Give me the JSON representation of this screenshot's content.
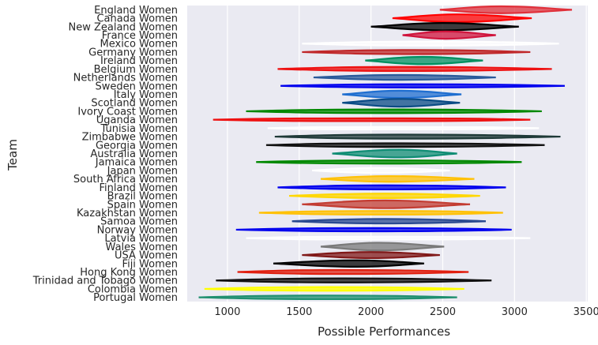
{
  "chart_data": {
    "type": "violin",
    "orientation": "horizontal",
    "title": "",
    "xlabel": "Possible Performances",
    "ylabel": "Team",
    "xlim": [
      720,
      3510
    ],
    "xticks": [
      1000,
      1500,
      2000,
      2500,
      3000,
      3500
    ],
    "grid": true,
    "legend": "none",
    "background": "#eaeaf2",
    "series": [
      {
        "name": "England Women",
        "color": "#e0303a",
        "min": 2480,
        "max": 3400,
        "center": 2900,
        "width": 0.85
      },
      {
        "name": "Canada Women",
        "color": "#ff0000",
        "min": 2150,
        "max": 3120,
        "center": 2600,
        "width": 0.95
      },
      {
        "name": "New Zealand Women",
        "color": "#000000",
        "min": 2000,
        "max": 3030,
        "center": 2500,
        "width": 0.9
      },
      {
        "name": "France Women",
        "color": "#d0143c",
        "min": 2220,
        "max": 2870,
        "center": 2520,
        "width": 0.9
      },
      {
        "name": "Mexico Women",
        "color": "#ffffff",
        "min": 1520,
        "max": 3310,
        "center": 2400,
        "width": 0.5
      },
      {
        "name": "Germany Women",
        "color": "#c0282a",
        "min": 1520,
        "max": 3110,
        "center": 2300,
        "width": 0.5
      },
      {
        "name": "Ireland Women",
        "color": "#009060",
        "min": 1960,
        "max": 2780,
        "center": 2360,
        "width": 0.9
      },
      {
        "name": "Belgium Women",
        "color": "#ee1111",
        "min": 1350,
        "max": 3260,
        "center": 2200,
        "width": 0.5
      },
      {
        "name": "Netherlands Women",
        "color": "#2a5a9a",
        "min": 1600,
        "max": 2870,
        "center": 2200,
        "width": 0.6
      },
      {
        "name": "Sweden Women",
        "color": "#0000ee",
        "min": 1370,
        "max": 3350,
        "center": 2300,
        "width": 0.4
      },
      {
        "name": "Italy Women",
        "color": "#1f6ed0",
        "min": 1800,
        "max": 2630,
        "center": 2200,
        "width": 0.9
      },
      {
        "name": "Scotland Women",
        "color": "#0a4b85",
        "min": 1800,
        "max": 2620,
        "center": 2200,
        "width": 0.95
      },
      {
        "name": "Ivory Coast Women",
        "color": "#008800",
        "min": 1130,
        "max": 3190,
        "center": 2100,
        "width": 0.45
      },
      {
        "name": "Uganda Women",
        "color": "#ee1111",
        "min": 900,
        "max": 3110,
        "center": 2000,
        "width": 0.35
      },
      {
        "name": "Tunisia Women",
        "color": "#ffffff",
        "min": 1280,
        "max": 3170,
        "center": 2100,
        "width": 0.3
      },
      {
        "name": "Zimbabwe Women",
        "color": "#1f3a38",
        "min": 1330,
        "max": 3320,
        "center": 2200,
        "width": 0.5
      },
      {
        "name": "Georgia Women",
        "color": "#111111",
        "min": 1270,
        "max": 3210,
        "center": 2100,
        "width": 0.45
      },
      {
        "name": "Australia Women",
        "color": "#108d74",
        "min": 1730,
        "max": 2600,
        "center": 2200,
        "width": 0.95
      },
      {
        "name": "Jamaica Women",
        "color": "#008800",
        "min": 1200,
        "max": 3050,
        "center": 2100,
        "width": 0.4
      },
      {
        "name": "Japan Women",
        "color": "#ffffff",
        "min": 1590,
        "max": 2550,
        "center": 2050,
        "width": 0.6
      },
      {
        "name": "South Africa Women",
        "color": "#ffc107",
        "min": 1650,
        "max": 2720,
        "center": 2120,
        "width": 0.7
      },
      {
        "name": "Finland Women",
        "color": "#0000ee",
        "min": 1350,
        "max": 2940,
        "center": 2100,
        "width": 0.5
      },
      {
        "name": "Brazil Women",
        "color": "#ffd700",
        "min": 1430,
        "max": 2760,
        "center": 2100,
        "width": 0.55
      },
      {
        "name": "Spain Women",
        "color": "#c33c32",
        "min": 1520,
        "max": 2690,
        "center": 2100,
        "width": 0.95
      },
      {
        "name": "Kazakhstan Women",
        "color": "#ffc107",
        "min": 1220,
        "max": 2920,
        "center": 2100,
        "width": 0.45
      },
      {
        "name": "Samoa Women",
        "color": "#2a4a90",
        "min": 1450,
        "max": 2800,
        "center": 2100,
        "width": 0.55
      },
      {
        "name": "Norway Women",
        "color": "#0000ee",
        "min": 1060,
        "max": 2980,
        "center": 2000,
        "width": 0.4
      },
      {
        "name": "Latvia Women",
        "color": "#ffffff",
        "min": 1130,
        "max": 3110,
        "center": 2000,
        "width": 0.35
      },
      {
        "name": "Wales Women",
        "color": "#7a7a7a",
        "min": 1650,
        "max": 2510,
        "center": 2050,
        "width": 0.95
      },
      {
        "name": "USA Women",
        "color": "#801818",
        "min": 1520,
        "max": 2480,
        "center": 2000,
        "width": 0.75
      },
      {
        "name": "Fiji Women",
        "color": "#000000",
        "min": 1320,
        "max": 2370,
        "center": 1900,
        "width": 0.8
      },
      {
        "name": "Hong Kong Women",
        "color": "#e02010",
        "min": 1070,
        "max": 2680,
        "center": 1800,
        "width": 0.5
      },
      {
        "name": "Trinidad and Tobago Women",
        "color": "#111111",
        "min": 920,
        "max": 2840,
        "center": 1800,
        "width": 0.5
      },
      {
        "name": "Colombia Women",
        "color": "#ffff00",
        "min": 840,
        "max": 2650,
        "center": 1700,
        "width": 0.45
      },
      {
        "name": "Portugal Women",
        "color": "#209070",
        "min": 800,
        "max": 2600,
        "center": 1700,
        "width": 0.45
      }
    ]
  }
}
